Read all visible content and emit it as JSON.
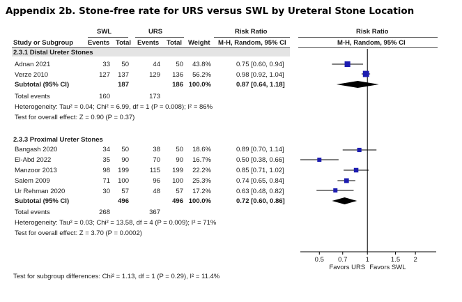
{
  "title": "Appendix 2b. Stone-free rate for URS versus SWL by Ureteral Stone Location",
  "header": {
    "swl": "SWL",
    "urs": "URS",
    "rr": "Risk Ratio",
    "plot_rr": "Risk Ratio",
    "study": "Study or Subgroup",
    "events1": "Events",
    "total1": "Total",
    "events2": "Events",
    "total2": "Total",
    "weight": "Weight",
    "method": "M-H, Random, 95% CI",
    "plot_method": "M-H, Random, 95% CI"
  },
  "subgroups": [
    {
      "label": "2.3.1 Distal Ureter Stones",
      "studies": [
        {
          "name": "Adnan 2021",
          "e1": "33",
          "n1": "50",
          "e2": "44",
          "n2": "50",
          "weight": "43.8%",
          "ci": "0.75 [0.60, 0.94]"
        },
        {
          "name": "Verze 2010",
          "e1": "127",
          "n1": "137",
          "e2": "129",
          "n2": "136",
          "weight": "56.2%",
          "ci": "0.98 [0.92, 1.04]"
        }
      ],
      "subtotal": {
        "label": "Subtotal (95% CI)",
        "n1": "187",
        "n2": "186",
        "weight": "100.0%",
        "ci": "0.87 [0.64, 1.18]"
      },
      "total_events": {
        "label": "Total events",
        "e1": "160",
        "e2": "173"
      },
      "heterogeneity": "Heterogeneity: Tau² = 0.04; Chi² = 6.99, df = 1 (P = 0.008); I² = 86%",
      "overall": "Test for overall effect: Z = 0.90 (P = 0.37)"
    },
    {
      "label": "2.3.3 Proximal Ureter Stones",
      "studies": [
        {
          "name": "Bangash 2020",
          "e1": "34",
          "n1": "50",
          "e2": "38",
          "n2": "50",
          "weight": "18.6%",
          "ci": "0.89 [0.70, 1.14]"
        },
        {
          "name": "El-Abd 2022",
          "e1": "35",
          "n1": "90",
          "e2": "70",
          "n2": "90",
          "weight": "16.7%",
          "ci": "0.50 [0.38, 0.66]"
        },
        {
          "name": "Manzoor 2013",
          "e1": "98",
          "n1": "199",
          "e2": "115",
          "n2": "199",
          "weight": "22.2%",
          "ci": "0.85 [0.71, 1.02]"
        },
        {
          "name": "Salem 2009",
          "e1": "71",
          "n1": "100",
          "e2": "96",
          "n2": "100",
          "weight": "25.3%",
          "ci": "0.74 [0.65, 0.84]"
        },
        {
          "name": "Ur Rehman 2020",
          "e1": "30",
          "n1": "57",
          "e2": "48",
          "n2": "57",
          "weight": "17.2%",
          "ci": "0.63 [0.48, 0.82]"
        }
      ],
      "subtotal": {
        "label": "Subtotal (95% CI)",
        "n1": "496",
        "n2": "496",
        "weight": "100.0%",
        "ci": "0.72 [0.60, 0.86]"
      },
      "total_events": {
        "label": "Total events",
        "e1": "268",
        "e2": "367"
      },
      "heterogeneity": "Heterogeneity: Tau² = 0.03; Chi² = 13.58, df = 4 (P = 0.009); I² = 71%",
      "overall": "Test for overall effect: Z = 3.70 (P = 0.0002)"
    }
  ],
  "subgroup_test": "Test for subgroup differences: Chi² = 1.13, df = 1 (P = 0.29), I² = 11.4%",
  "colors": {
    "marker": "#1c1cb0",
    "diamond": "#000000",
    "line": "#000000"
  },
  "chart_data": {
    "type": "forest",
    "scale": "log",
    "xlim": [
      0.38,
      2.7
    ],
    "ticks": [
      0.5,
      0.7,
      1,
      1.5,
      2
    ],
    "tick_labels": [
      "0.5",
      "0.7",
      "1",
      "1.5",
      "2"
    ],
    "null_value": 1,
    "xlabel_left": "Favors URS",
    "xlabel_right": "Favors SWL",
    "series": [
      {
        "group": "distal",
        "name": "Adnan 2021",
        "rr": 0.75,
        "lo": 0.6,
        "hi": 0.94,
        "weight": 43.8
      },
      {
        "group": "distal",
        "name": "Verze 2010",
        "rr": 0.98,
        "lo": 0.92,
        "hi": 1.04,
        "weight": 56.2
      },
      {
        "group": "distal",
        "name": "Subtotal (95% CI)",
        "rr": 0.87,
        "lo": 0.64,
        "hi": 1.18,
        "summary": true
      },
      {
        "group": "proximal",
        "name": "Bangash 2020",
        "rr": 0.89,
        "lo": 0.7,
        "hi": 1.14,
        "weight": 18.6
      },
      {
        "group": "proximal",
        "name": "El-Abd 2022",
        "rr": 0.5,
        "lo": 0.38,
        "hi": 0.66,
        "weight": 16.7
      },
      {
        "group": "proximal",
        "name": "Manzoor 2013",
        "rr": 0.85,
        "lo": 0.71,
        "hi": 1.02,
        "weight": 22.2
      },
      {
        "group": "proximal",
        "name": "Salem 2009",
        "rr": 0.74,
        "lo": 0.65,
        "hi": 0.84,
        "weight": 25.3
      },
      {
        "group": "proximal",
        "name": "Ur Rehman 2020",
        "rr": 0.63,
        "lo": 0.48,
        "hi": 0.82,
        "weight": 17.2
      },
      {
        "group": "proximal",
        "name": "Subtotal (95% CI)",
        "rr": 0.72,
        "lo": 0.6,
        "hi": 0.86,
        "summary": true
      }
    ]
  }
}
